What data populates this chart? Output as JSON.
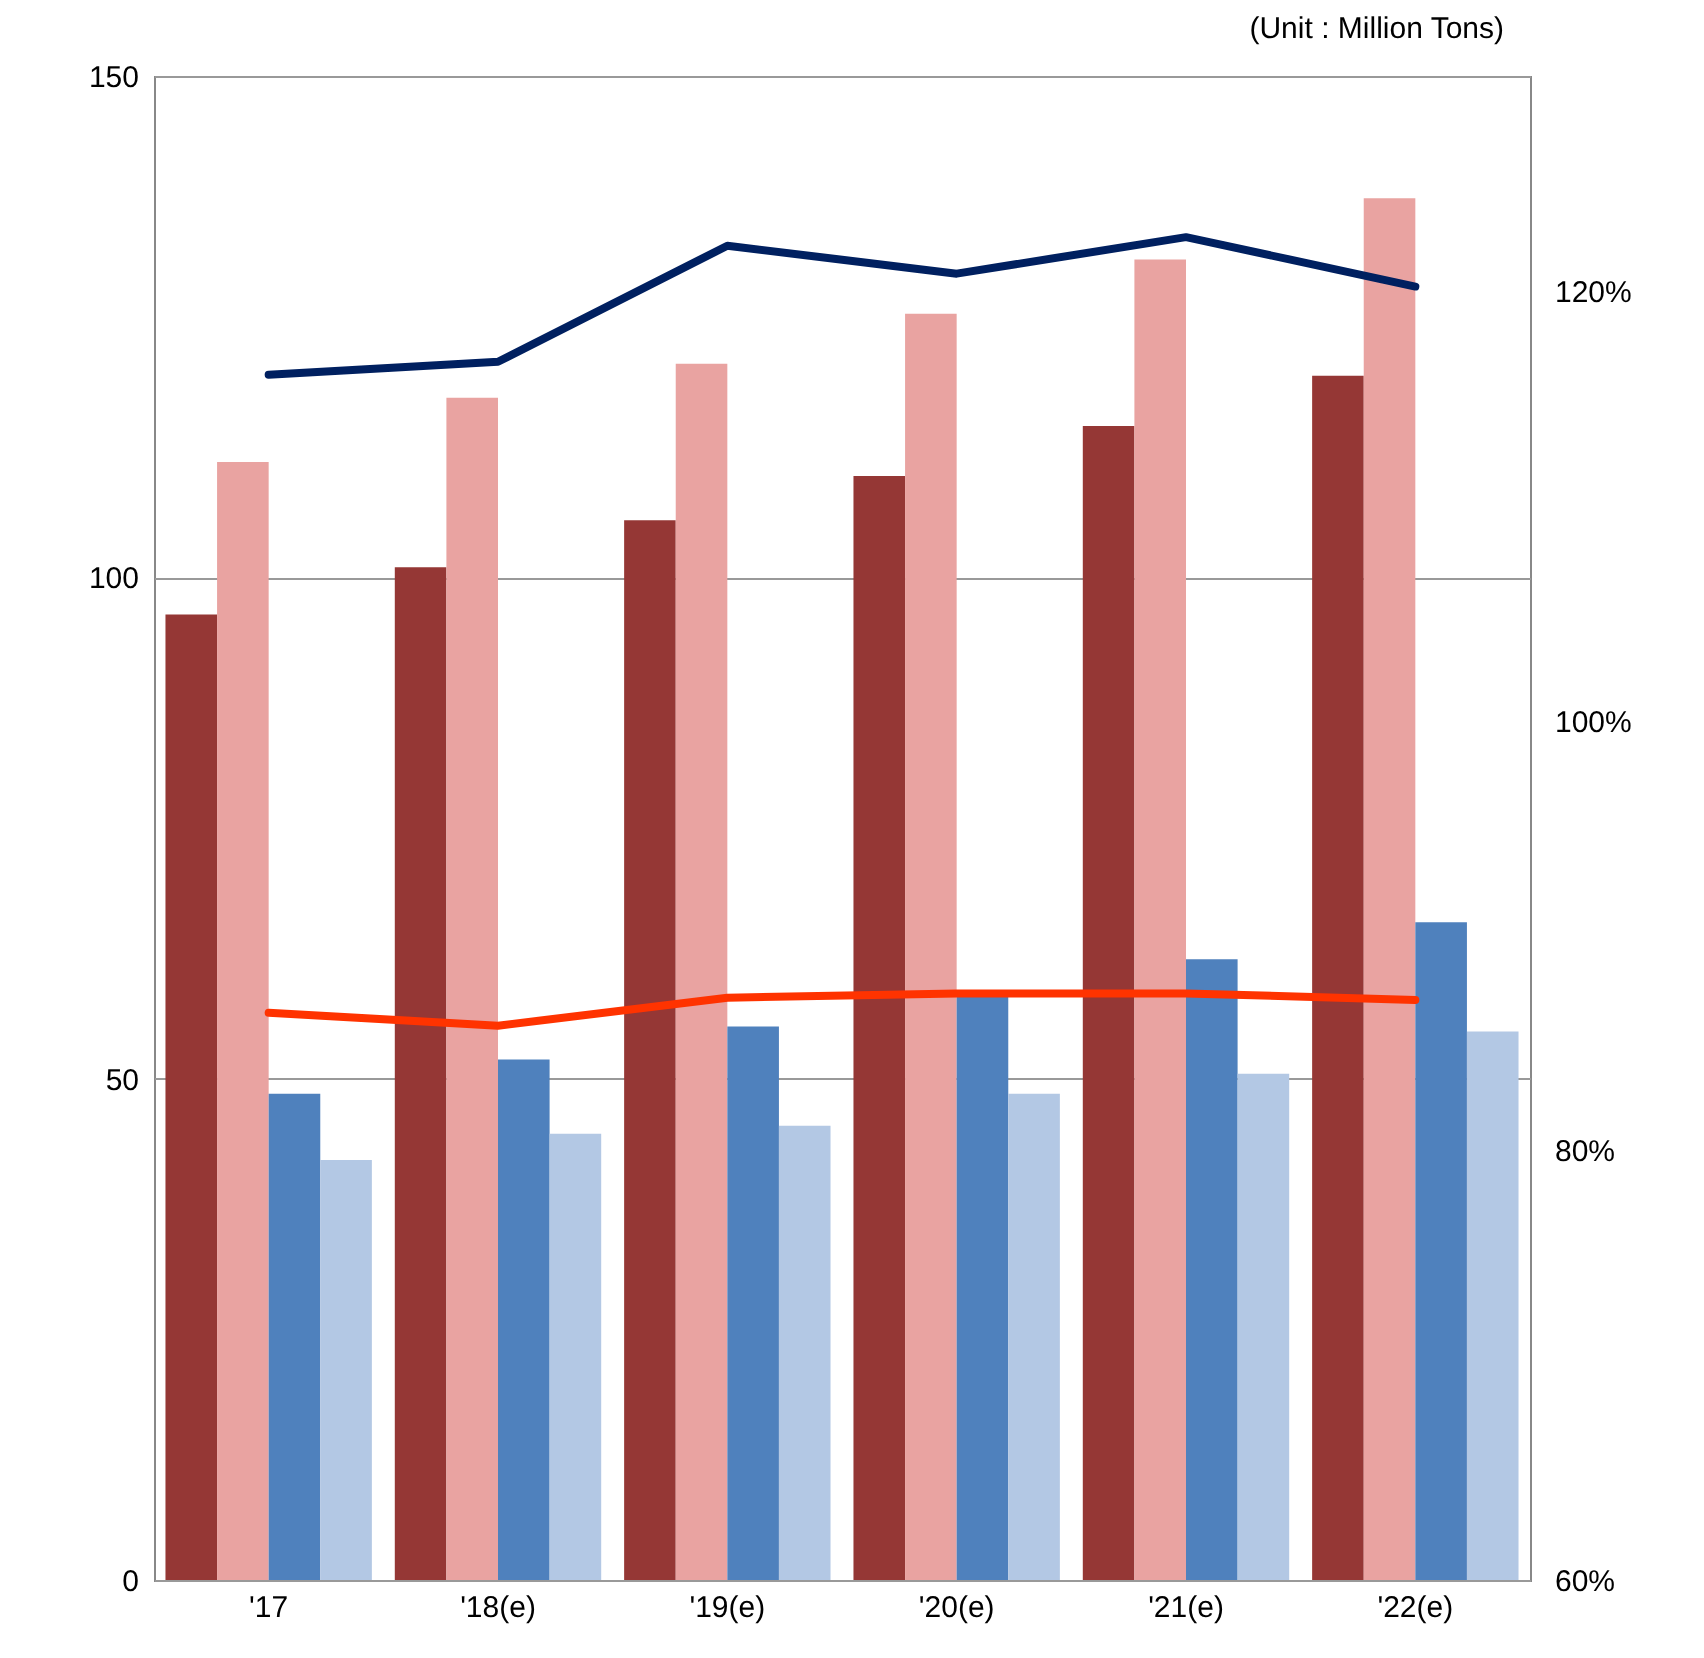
{
  "chart_data": {
    "type": "bar",
    "categories": [
      "'17",
      "'18(e)",
      "'19(e)",
      "'20(e)",
      "'21(e)",
      "'22(e)"
    ],
    "series": [
      {
        "color": "#953735",
        "values": [
          96.3,
          101,
          105.7,
          110.1,
          115.1,
          120.1
        ]
      },
      {
        "color": "#e9a3a1",
        "values": [
          111.5,
          117.9,
          121.3,
          126.3,
          131.7,
          137.8
        ]
      },
      {
        "color": "#4f81bd",
        "values": [
          48.5,
          51.9,
          55.2,
          58.3,
          61.9,
          65.6
        ]
      },
      {
        "color": "#b3c8e4",
        "values": [
          41.9,
          44.5,
          45.3,
          48.5,
          50.5,
          54.7
        ]
      },
      {
        "type": "line",
        "axis": "y2",
        "color": "#002060",
        "values": [
          116.1,
          116.7,
          122.1,
          120.8,
          122.5,
          120.2
        ]
      },
      {
        "type": "line",
        "axis": "y2",
        "color": "#ff3300",
        "values": [
          86.4,
          85.8,
          87.1,
          87.3,
          87.3,
          87.0
        ]
      }
    ],
    "ylim": [
      0,
      150
    ],
    "yticks": [
      0,
      50,
      100,
      150
    ],
    "y2lim": [
      60,
      130
    ],
    "y2ticks": [
      {
        "value": 60,
        "label": "60%"
      },
      {
        "value": 80,
        "label": "80%"
      },
      {
        "value": 100,
        "label": "100%"
      },
      {
        "value": 120,
        "label": "120%"
      }
    ],
    "grid": "y",
    "legend": false,
    "annotations": [
      "(Unit : Million Tons)"
    ]
  }
}
